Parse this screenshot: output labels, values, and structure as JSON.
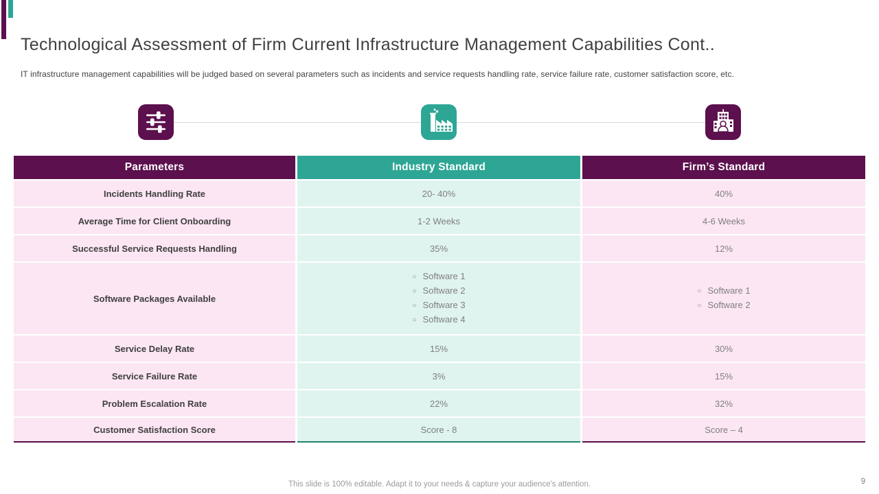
{
  "slide": {
    "title": "Technological Assessment of Firm Current Infrastructure Management Capabilities Cont..",
    "subtitle": "IT infrastructure management capabilities will be judged based on several parameters such as incidents and service requests handling rate, service failure rate, customer satisfaction score, etc.",
    "footer": "This slide is 100% editable. Adapt it to your needs & capture your audience's attention.",
    "page_number": "9"
  },
  "colors": {
    "accent_purple": "#5c104d",
    "accent_teal": "#2ea695",
    "row_pink": "#fce6f3",
    "row_mint": "#e0f4ef",
    "value_text": "#7f7f7f",
    "label_text": "#3f3f3f"
  },
  "icons": [
    {
      "name": "sliders-icon",
      "background": "#5c104d"
    },
    {
      "name": "factory-icon",
      "background": "#2ea695"
    },
    {
      "name": "firm-building-icon",
      "background": "#5c104d"
    }
  ],
  "table": {
    "headers": [
      "Parameters",
      "Industry Standard",
      "Firm’s Standard"
    ],
    "bullet": "○",
    "rows": [
      {
        "parameter": "Incidents Handling Rate",
        "industry": "20- 40%",
        "firm": "40%"
      },
      {
        "parameter": "Average Time for Client Onboarding",
        "industry": "1-2 Weeks",
        "firm": "4-6 Weeks"
      },
      {
        "parameter": "Successful Service Requests Handling",
        "industry": "35%",
        "firm": "12%"
      },
      {
        "parameter": "Software Packages Available",
        "industry_list": [
          "Software 1",
          "Software 2",
          "Software 3",
          "Software 4"
        ],
        "firm_list": [
          "Software 1",
          "Software 2"
        ]
      },
      {
        "parameter": "Service Delay Rate",
        "industry": "15%",
        "firm": "30%"
      },
      {
        "parameter": "Service Failure Rate",
        "industry": "3%",
        "firm": "15%"
      },
      {
        "parameter": "Problem Escalation Rate",
        "industry": "22%",
        "firm": "32%"
      },
      {
        "parameter": "Customer Satisfaction Score",
        "industry": "Score - 8",
        "firm": "Score – 4"
      }
    ]
  }
}
